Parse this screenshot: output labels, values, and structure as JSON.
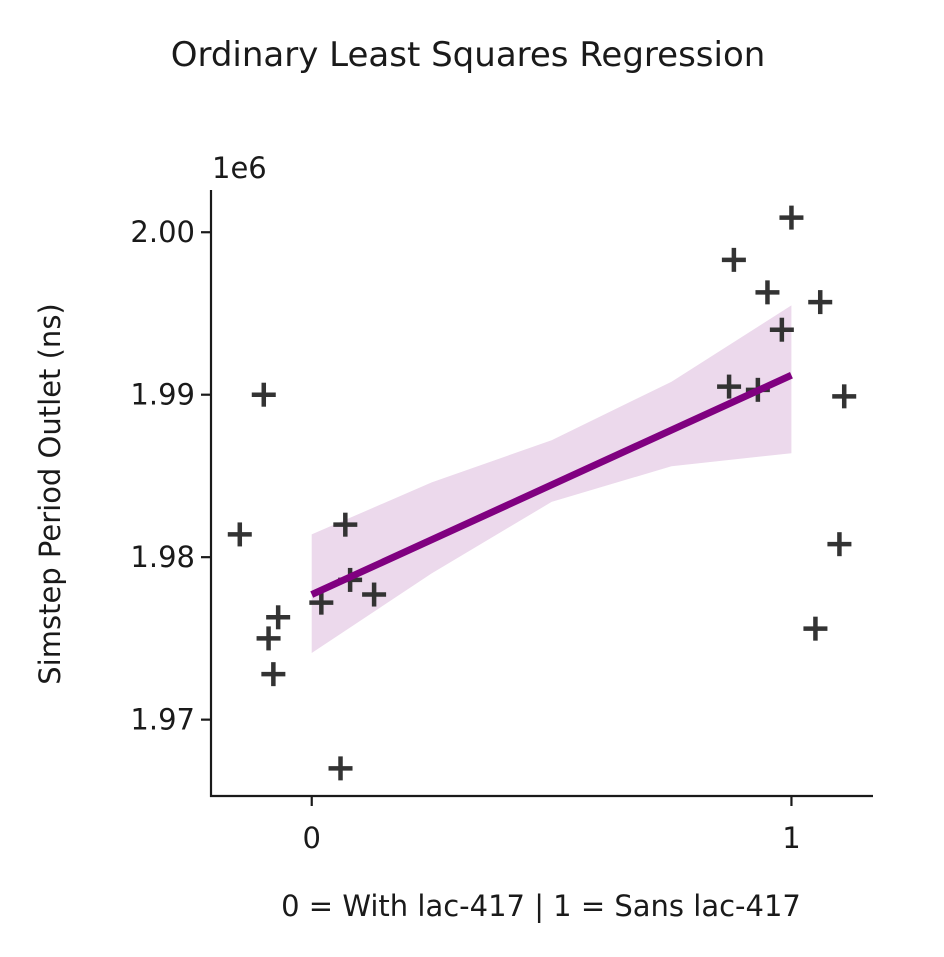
{
  "chart_data": {
    "type": "scatter",
    "title": "Ordinary Least Squares Regression",
    "xlabel": "0 = With lac-417 | 1 = Sans lac-417",
    "ylabel": "Simstep Period Outlet (ns)",
    "y_offset_label": "1e6",
    "xlim": [
      -0.21,
      1.17
    ],
    "ylim": [
      1965300,
      2002600
    ],
    "x_ticks": [
      {
        "value": 0,
        "label": "0"
      },
      {
        "value": 1,
        "label": "1"
      }
    ],
    "y_ticks": [
      {
        "value": 1970000,
        "label": "1.97"
      },
      {
        "value": 1980000,
        "label": "1.98"
      },
      {
        "value": 1990000,
        "label": "1.99"
      },
      {
        "value": 2000000,
        "label": "2.00"
      }
    ],
    "grid": false,
    "marker": "+",
    "colors": {
      "points": "#333333",
      "line": "#800080",
      "band": "#ecd9ec"
    },
    "points": [
      {
        "x": -0.15,
        "y": 1981400
      },
      {
        "x": -0.1,
        "y": 1990000
      },
      {
        "x": -0.09,
        "y": 1975000
      },
      {
        "x": -0.08,
        "y": 1972800
      },
      {
        "x": -0.07,
        "y": 1976300
      },
      {
        "x": 0.02,
        "y": 1977200
      },
      {
        "x": 0.06,
        "y": 1967000
      },
      {
        "x": 0.07,
        "y": 1982000
      },
      {
        "x": 0.08,
        "y": 1978600
      },
      {
        "x": 0.13,
        "y": 1977700
      },
      {
        "x": 0.87,
        "y": 1990500
      },
      {
        "x": 0.88,
        "y": 1998300
      },
      {
        "x": 0.93,
        "y": 1990300
      },
      {
        "x": 0.95,
        "y": 1996300
      },
      {
        "x": 0.98,
        "y": 1994000
      },
      {
        "x": 1.0,
        "y": 2000900
      },
      {
        "x": 1.05,
        "y": 1975600
      },
      {
        "x": 1.06,
        "y": 1995700
      },
      {
        "x": 1.1,
        "y": 1980800
      },
      {
        "x": 1.11,
        "y": 1989900
      }
    ],
    "regression": {
      "x": [
        0,
        1
      ],
      "y": [
        1977700,
        1991200
      ]
    },
    "confidence_band": {
      "x": [
        0,
        0.25,
        0.5,
        0.75,
        1.0
      ],
      "lower": [
        1974100,
        1979000,
        1983400,
        1985600,
        1986400
      ],
      "upper": [
        1981400,
        1984600,
        1987200,
        1990800,
        1995500
      ]
    }
  }
}
